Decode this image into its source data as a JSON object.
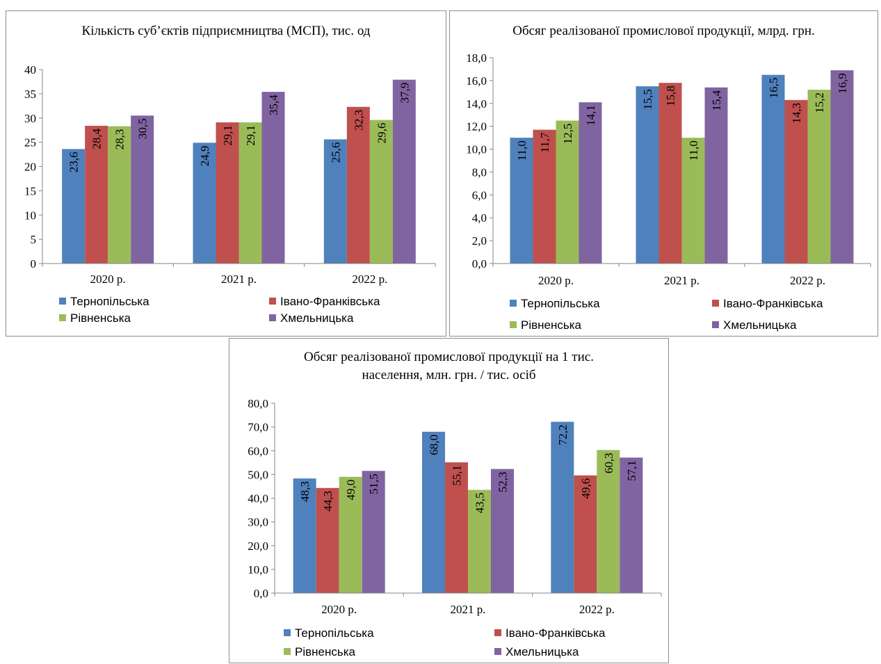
{
  "chart_data": [
    {
      "type": "bar",
      "title": "Кількість суб’єктів підприємництва (МСП), тис. од",
      "categories": [
        "2020 р.",
        "2021 р.",
        "2022 р."
      ],
      "ylim": [
        0,
        40
      ],
      "yticks": [
        "0",
        "5",
        "10",
        "15",
        "20",
        "25",
        "30",
        "35",
        "40"
      ],
      "series": [
        {
          "name": "Тернопільська",
          "color": "#4f81bd",
          "values": [
            23.6,
            24.9,
            25.6
          ],
          "labels": [
            "23,6",
            "24,9",
            "25,6"
          ]
        },
        {
          "name": "Івано-Франківська",
          "color": "#c0504d",
          "values": [
            28.4,
            29.1,
            32.3
          ],
          "labels": [
            "28,4",
            "29,1",
            "32,3"
          ]
        },
        {
          "name": "Рівненська",
          "color": "#9bbb59",
          "values": [
            28.3,
            29.1,
            29.6
          ],
          "labels": [
            "28,3",
            "29,1",
            "29,6"
          ]
        },
        {
          "name": "Хмельницька",
          "color": "#8064a2",
          "values": [
            30.5,
            35.4,
            37.9
          ],
          "labels": [
            "30,5",
            "35,4",
            "37,9"
          ]
        }
      ],
      "legend": "bottom",
      "grid": false
    },
    {
      "type": "bar",
      "title": "Обсяг реалізованої промислової продукції, млрд. грн.",
      "categories": [
        "2020 р.",
        "2021 р.",
        "2022 р."
      ],
      "ylim": [
        0,
        18
      ],
      "yticks": [
        "0,0",
        "2,0",
        "4,0",
        "6,0",
        "8,0",
        "10,0",
        "12,0",
        "14,0",
        "16,0",
        "18,0"
      ],
      "series": [
        {
          "name": "Тернопільська",
          "color": "#4f81bd",
          "values": [
            11.0,
            15.5,
            16.5
          ],
          "labels": [
            "11,0",
            "15,5",
            "16,5"
          ]
        },
        {
          "name": "Івано-Франківська",
          "color": "#c0504d",
          "values": [
            11.7,
            15.8,
            14.3
          ],
          "labels": [
            "11,7",
            "15,8",
            "14,3"
          ]
        },
        {
          "name": "Рівненська",
          "color": "#9bbb59",
          "values": [
            12.5,
            11.0,
            15.2
          ],
          "labels": [
            "12,5",
            "11,0",
            "15,2"
          ]
        },
        {
          "name": "Хмельницька",
          "color": "#8064a2",
          "values": [
            14.1,
            15.4,
            16.9
          ],
          "labels": [
            "14,1",
            "15,4",
            "16,9"
          ]
        }
      ],
      "legend": "bottom",
      "grid": false
    },
    {
      "type": "bar",
      "title": "Обсяг реалізованої промислової продукції на 1 тис. населення, млн. грн. / тис. осіб",
      "title_lines": [
        "Обсяг реалізованої промислової продукції на 1 тис.",
        "населення, млн. грн.  / тис. осіб"
      ],
      "categories": [
        "2020 р.",
        "2021 р.",
        "2022 р."
      ],
      "ylim": [
        0,
        80
      ],
      "yticks": [
        "0,0",
        "10,0",
        "20,0",
        "30,0",
        "40,0",
        "50,0",
        "60,0",
        "70,0",
        "80,0"
      ],
      "series": [
        {
          "name": "Тернопільська",
          "color": "#4f81bd",
          "values": [
            48.3,
            68.0,
            72.2
          ],
          "labels": [
            "48,3",
            "68,0",
            "72,2"
          ]
        },
        {
          "name": "Івано-Франківська",
          "color": "#c0504d",
          "values": [
            44.3,
            55.1,
            49.6
          ],
          "labels": [
            "44,3",
            "55,1",
            "49,6"
          ]
        },
        {
          "name": "Рівненська",
          "color": "#9bbb59",
          "values": [
            49.0,
            43.5,
            60.3
          ],
          "labels": [
            "49,0",
            "43,5",
            "60,3"
          ]
        },
        {
          "name": "Хмельницька",
          "color": "#8064a2",
          "values": [
            51.5,
            52.3,
            57.1
          ],
          "labels": [
            "51,5",
            "52,3",
            "57,1"
          ]
        }
      ],
      "legend": "bottom",
      "grid": false
    }
  ]
}
